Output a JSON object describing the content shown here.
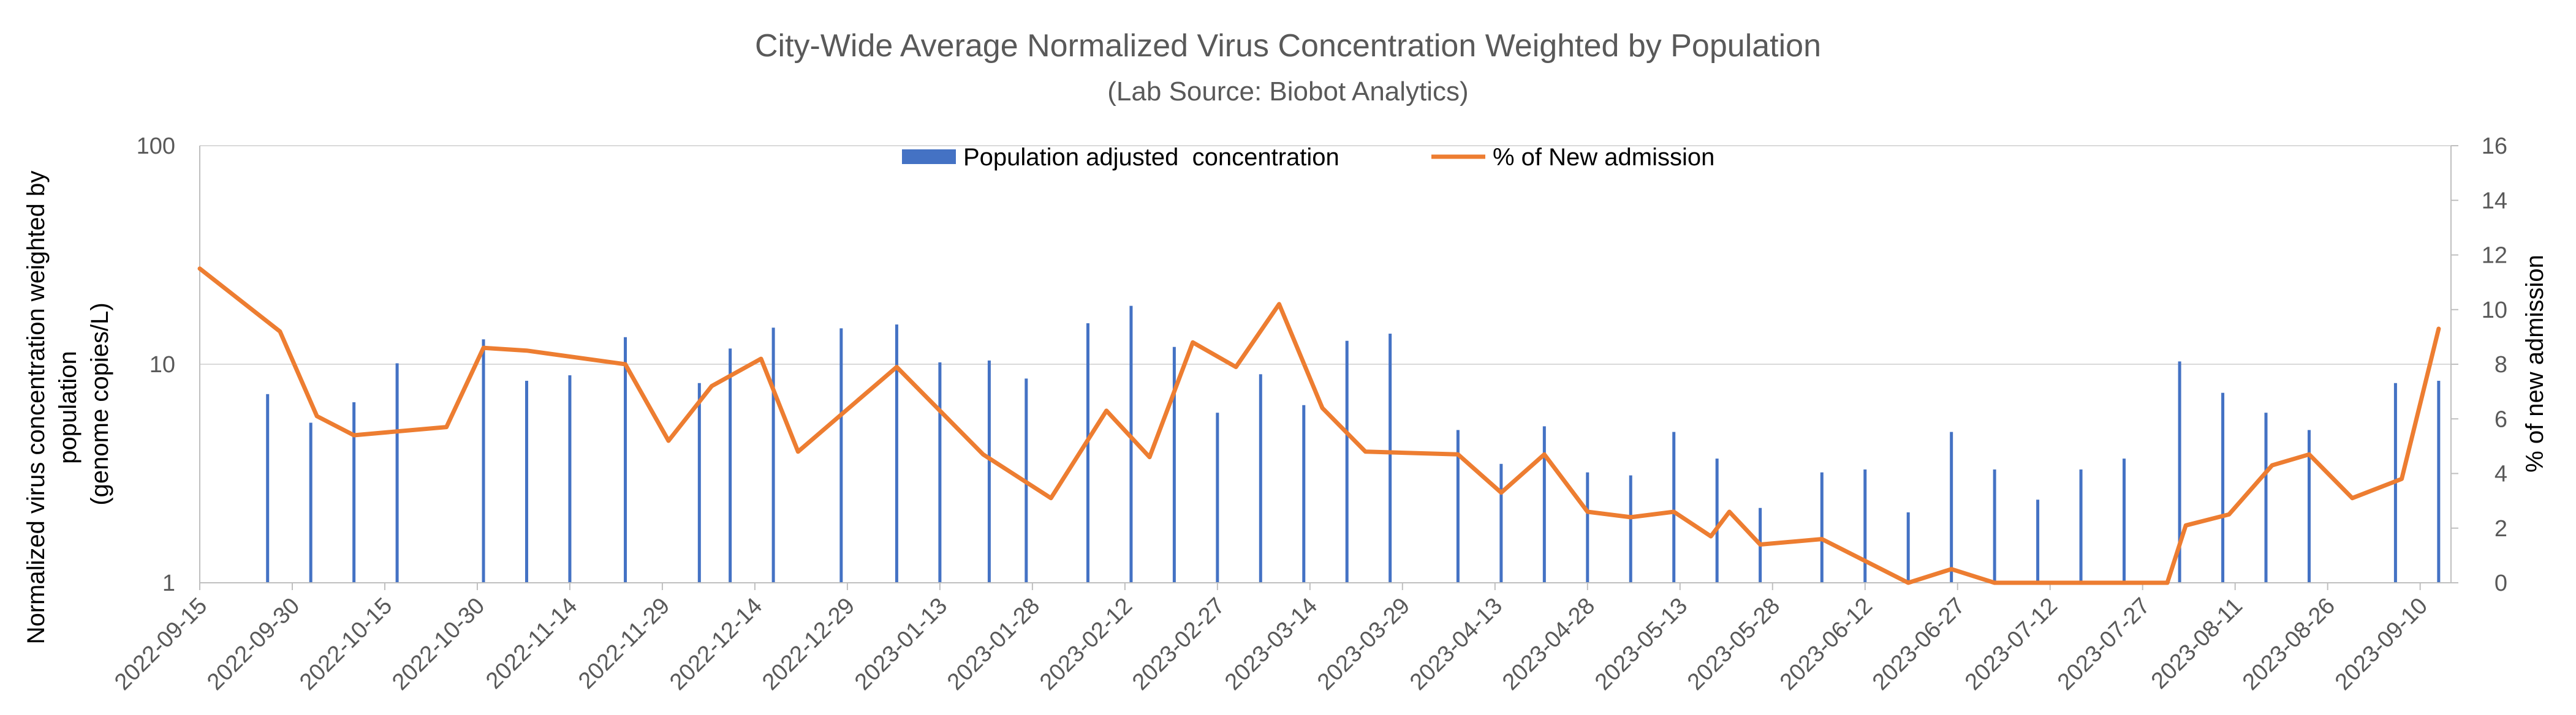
{
  "chart_data": {
    "type": "bar+line",
    "title": "City-Wide Average Normalized Virus Concentration Weighted by Population",
    "subtitle": "(Lab Source: Biobot Analytics)",
    "ylabel_left_lines": [
      "Normalized virus concentration weighted by",
      "population",
      "(genome copies/L)"
    ],
    "ylabel_right": "% of new admission",
    "y_left": {
      "scale": "log",
      "ylim": [
        1,
        100
      ],
      "ticks": [
        "1",
        "10",
        "100"
      ]
    },
    "y_right": {
      "ylim": [
        0,
        16
      ],
      "ticks": [
        "0",
        "2",
        "4",
        "6",
        "8",
        "10",
        "12",
        "14",
        "16"
      ]
    },
    "x_range": [
      "2022-09-15",
      "2023-09-15"
    ],
    "x_ticks": [
      "2022-09-15",
      "2022-09-30",
      "2022-10-15",
      "2022-10-30",
      "2022-11-14",
      "2022-11-29",
      "2022-12-14",
      "2022-12-29",
      "2023-01-13",
      "2023-01-28",
      "2023-02-12",
      "2023-02-27",
      "2023-03-14",
      "2023-03-29",
      "2023-04-13",
      "2023-04-28",
      "2023-05-13",
      "2023-05-28",
      "2023-06-12",
      "2023-06-27",
      "2023-07-12",
      "2023-07-27",
      "2023-08-11",
      "2023-08-26",
      "2023-09-10"
    ],
    "grid": "horizontal",
    "legend_position": "top-center",
    "colors": {
      "bars": "#4472c4",
      "line": "#ed7d31",
      "grid": "#d9d9d9",
      "axis": "#bfbfbf"
    },
    "series": [
      {
        "name": "Population adjusted  concentration",
        "kind": "bar",
        "axis": "left",
        "points": [
          {
            "x": "2022-09-26",
            "y": 7.3
          },
          {
            "x": "2022-10-03",
            "y": 5.4
          },
          {
            "x": "2022-10-10",
            "y": 6.7
          },
          {
            "x": "2022-10-17",
            "y": 10.1
          },
          {
            "x": "2022-10-31",
            "y": 13.0
          },
          {
            "x": "2022-11-07",
            "y": 8.4
          },
          {
            "x": "2022-11-14",
            "y": 8.9
          },
          {
            "x": "2022-11-23",
            "y": 13.3
          },
          {
            "x": "2022-12-05",
            "y": 8.2
          },
          {
            "x": "2022-12-10",
            "y": 11.8
          },
          {
            "x": "2022-12-17",
            "y": 14.7
          },
          {
            "x": "2022-12-28",
            "y": 14.6
          },
          {
            "x": "2023-01-06",
            "y": 15.2
          },
          {
            "x": "2023-01-13",
            "y": 10.2
          },
          {
            "x": "2023-01-21",
            "y": 10.4
          },
          {
            "x": "2023-01-27",
            "y": 8.6
          },
          {
            "x": "2023-02-06",
            "y": 15.4
          },
          {
            "x": "2023-02-13",
            "y": 18.5
          },
          {
            "x": "2023-02-20",
            "y": 12.0
          },
          {
            "x": "2023-02-27",
            "y": 6.0
          },
          {
            "x": "2023-03-06",
            "y": 9.0
          },
          {
            "x": "2023-03-13",
            "y": 6.5
          },
          {
            "x": "2023-03-20",
            "y": 12.8
          },
          {
            "x": "2023-03-27",
            "y": 13.8
          },
          {
            "x": "2023-04-07",
            "y": 5.0
          },
          {
            "x": "2023-04-14",
            "y": 3.5
          },
          {
            "x": "2023-04-21",
            "y": 5.2
          },
          {
            "x": "2023-04-28",
            "y": 3.2
          },
          {
            "x": "2023-05-05",
            "y": 3.1
          },
          {
            "x": "2023-05-12",
            "y": 4.9
          },
          {
            "x": "2023-05-19",
            "y": 3.7
          },
          {
            "x": "2023-05-26",
            "y": 2.2
          },
          {
            "x": "2023-06-05",
            "y": 3.2
          },
          {
            "x": "2023-06-12",
            "y": 3.3
          },
          {
            "x": "2023-06-19",
            "y": 2.1
          },
          {
            "x": "2023-06-26",
            "y": 4.9
          },
          {
            "x": "2023-07-03",
            "y": 3.3
          },
          {
            "x": "2023-07-10",
            "y": 2.4
          },
          {
            "x": "2023-07-17",
            "y": 3.3
          },
          {
            "x": "2023-07-24",
            "y": 3.7
          },
          {
            "x": "2023-08-02",
            "y": 10.3
          },
          {
            "x": "2023-08-09",
            "y": 7.4
          },
          {
            "x": "2023-08-16",
            "y": 6.0
          },
          {
            "x": "2023-08-23",
            "y": 5.0
          },
          {
            "x": "2023-09-06",
            "y": 8.2
          },
          {
            "x": "2023-09-13",
            "y": 8.4
          }
        ]
      },
      {
        "name": "% of New admission",
        "kind": "line",
        "axis": "right",
        "points": [
          {
            "x": "2022-09-15",
            "y": 11.5
          },
          {
            "x": "2022-09-28",
            "y": 9.2
          },
          {
            "x": "2022-10-04",
            "y": 6.1
          },
          {
            "x": "2022-10-10",
            "y": 5.4
          },
          {
            "x": "2022-10-25",
            "y": 5.7
          },
          {
            "x": "2022-10-31",
            "y": 8.6
          },
          {
            "x": "2022-11-07",
            "y": 8.5
          },
          {
            "x": "2022-11-23",
            "y": 8.0
          },
          {
            "x": "2022-11-30",
            "y": 5.2
          },
          {
            "x": "2022-12-07",
            "y": 7.2
          },
          {
            "x": "2022-12-15",
            "y": 8.2
          },
          {
            "x": "2022-12-21",
            "y": 4.8
          },
          {
            "x": "2023-01-06",
            "y": 7.9
          },
          {
            "x": "2023-01-20",
            "y": 4.7
          },
          {
            "x": "2023-01-31",
            "y": 3.1
          },
          {
            "x": "2023-02-09",
            "y": 6.3
          },
          {
            "x": "2023-02-16",
            "y": 4.6
          },
          {
            "x": "2023-02-23",
            "y": 8.8
          },
          {
            "x": "2023-03-02",
            "y": 7.9
          },
          {
            "x": "2023-03-09",
            "y": 10.2
          },
          {
            "x": "2023-03-16",
            "y": 6.4
          },
          {
            "x": "2023-03-23",
            "y": 4.8
          },
          {
            "x": "2023-04-07",
            "y": 4.7
          },
          {
            "x": "2023-04-14",
            "y": 3.3
          },
          {
            "x": "2023-04-21",
            "y": 4.7
          },
          {
            "x": "2023-04-28",
            "y": 2.6
          },
          {
            "x": "2023-05-05",
            "y": 2.4
          },
          {
            "x": "2023-05-12",
            "y": 2.6
          },
          {
            "x": "2023-05-18",
            "y": 1.7
          },
          {
            "x": "2023-05-21",
            "y": 2.6
          },
          {
            "x": "2023-05-26",
            "y": 1.4
          },
          {
            "x": "2023-06-05",
            "y": 1.6
          },
          {
            "x": "2023-06-19",
            "y": 0.0
          },
          {
            "x": "2023-06-26",
            "y": 0.5
          },
          {
            "x": "2023-07-03",
            "y": 0.0
          },
          {
            "x": "2023-07-17",
            "y": 0.0
          },
          {
            "x": "2023-07-24",
            "y": 0.0
          },
          {
            "x": "2023-07-31",
            "y": 0.0
          },
          {
            "x": "2023-08-03",
            "y": 2.1
          },
          {
            "x": "2023-08-10",
            "y": 2.5
          },
          {
            "x": "2023-08-17",
            "y": 4.3
          },
          {
            "x": "2023-08-23",
            "y": 4.7
          },
          {
            "x": "2023-08-30",
            "y": 3.1
          },
          {
            "x": "2023-09-07",
            "y": 3.8
          },
          {
            "x": "2023-09-13",
            "y": 9.3
          }
        ]
      }
    ]
  }
}
